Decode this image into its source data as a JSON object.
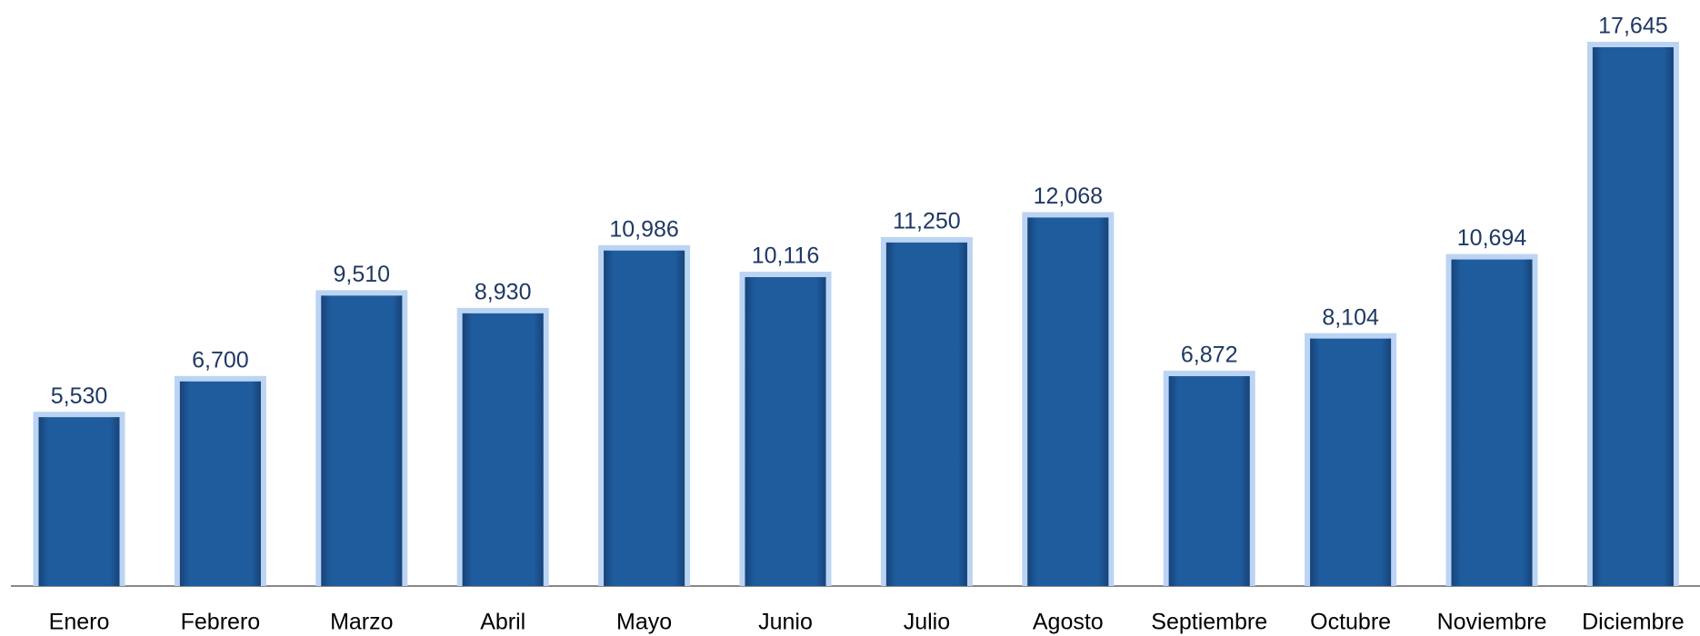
{
  "chart_data": {
    "type": "bar",
    "categories": [
      "Enero",
      "Febrero",
      "Marzo",
      "Abril",
      "Mayo",
      "Junio",
      "Julio",
      "Agosto",
      "Septiembre",
      "Octubre",
      "Noviembre",
      "Diciembre"
    ],
    "values": [
      5530,
      6700,
      9510,
      8930,
      10986,
      10116,
      11250,
      12068,
      6872,
      8104,
      10694,
      17645
    ],
    "value_labels": [
      "5,530",
      "6,700",
      "9,510",
      "8,930",
      "10,986",
      "10,116",
      "11,250",
      "12,068",
      "6,872",
      "8,104",
      "10,694",
      "17,645"
    ],
    "color": "#1f5c9e"
  }
}
